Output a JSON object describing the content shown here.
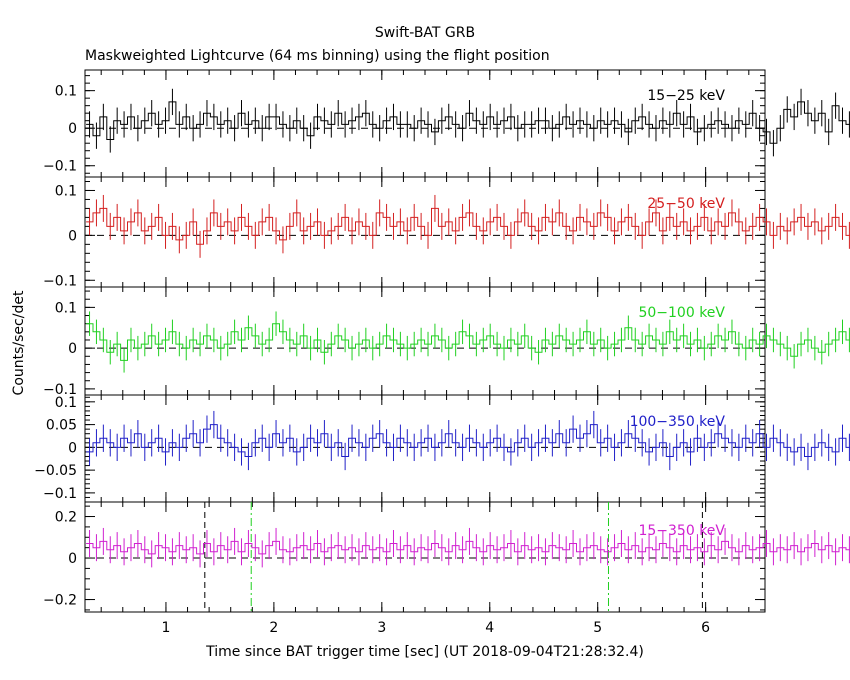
{
  "figure": {
    "title": "Swift-BAT GRB",
    "subtitle": "Maskweighted Lightcurve (64 ms binning) using the flight position",
    "xlabel": "Time since BAT trigger time [sec] (UT 2018-09-04T21:28:32.4)",
    "ylabel": "Counts/sec/det"
  },
  "chart_data": [
    {
      "type": "line",
      "step": true,
      "name": "15-25 keV",
      "label": "15−25 keV",
      "color": "#000000",
      "xlim": [
        0.25,
        6.55
      ],
      "ylim": [
        -0.13,
        0.155
      ],
      "yticks": [
        {
          "v": 0.1,
          "t": "0.1"
        },
        {
          "v": 0,
          "t": "0"
        },
        {
          "v": -0.1,
          "t": "−0.1"
        }
      ],
      "x0": 0.26,
      "dx": 0.064,
      "values": [
        0.01,
        -0.02,
        0.03,
        -0.03,
        0.02,
        0.01,
        0.03,
        0.0,
        0.02,
        0.04,
        0.01,
        0.02,
        0.07,
        0.01,
        0.03,
        0.0,
        0.01,
        0.04,
        0.03,
        0.01,
        0.02,
        0.0,
        0.04,
        0.01,
        0.02,
        0.0,
        0.03,
        0.03,
        0.01,
        0.0,
        0.02,
        0.0,
        -0.02,
        0.03,
        0.02,
        0.01,
        0.04,
        0.01,
        0.02,
        0.03,
        0.04,
        0.01,
        0.0,
        0.02,
        0.03,
        0.01,
        0.01,
        0.0,
        0.02,
        0.01,
        -0.01,
        0.02,
        0.03,
        0.01,
        0.0,
        0.04,
        0.02,
        0.01,
        0.03,
        0.01,
        0.02,
        0.03,
        0.0,
        0.01,
        0.01,
        0.02,
        0.02,
        0.0,
        0.01,
        0.03,
        0.01,
        0.02,
        0.01,
        0.0,
        0.02,
        0.01,
        0.02,
        0.01,
        -0.01,
        0.02,
        0.03,
        0.01,
        0.0,
        0.02,
        0.01,
        0.04,
        0.01,
        0.03,
        -0.01,
        0.0,
        0.01,
        0.02,
        0.01,
        0.0,
        0.02,
        0.01,
        0.04,
        0.0,
        -0.01,
        -0.04,
        0.0,
        0.05,
        0.03,
        0.07,
        0.04,
        0.02,
        0.04,
        -0.01,
        0.06,
        0.02,
        0.01,
        0.04,
        0.0,
        -0.02
      ],
      "errors": 0.035
    },
    {
      "type": "line",
      "step": true,
      "name": "25-50 keV",
      "label": "25−50 keV",
      "color": "#d42020",
      "xlim": [
        0.25,
        6.55
      ],
      "ylim": [
        -0.115,
        0.13
      ],
      "yticks": [
        {
          "v": 0.1,
          "t": "0.1"
        },
        {
          "v": 0,
          "t": "0"
        },
        {
          "v": -0.1,
          "t": "−0.1"
        }
      ],
      "x0": 0.26,
      "dx": 0.064,
      "values": [
        0.03,
        0.05,
        0.06,
        0.02,
        0.04,
        0.01,
        0.03,
        0.05,
        0.01,
        0.02,
        0.04,
        0.0,
        0.02,
        -0.01,
        0.0,
        0.03,
        -0.02,
        0.01,
        0.05,
        0.02,
        0.03,
        0.01,
        0.04,
        0.02,
        0.0,
        0.03,
        0.04,
        0.01,
        -0.01,
        0.02,
        0.05,
        0.01,
        0.02,
        0.03,
        0.0,
        0.01,
        0.02,
        0.04,
        0.01,
        0.03,
        0.02,
        0.0,
        0.05,
        0.04,
        0.02,
        0.03,
        0.01,
        0.04,
        0.02,
        0.0,
        0.06,
        0.02,
        0.03,
        0.01,
        0.04,
        0.05,
        0.02,
        0.01,
        0.03,
        0.04,
        0.02,
        0.0,
        0.03,
        0.05,
        0.02,
        0.01,
        0.04,
        0.03,
        0.05,
        0.02,
        0.01,
        0.04,
        0.03,
        0.02,
        0.05,
        0.04,
        0.01,
        0.03,
        0.04,
        0.02,
        0.0,
        0.03,
        0.05,
        0.01,
        0.04,
        0.02,
        0.03,
        0.01,
        0.02,
        0.04,
        0.01,
        0.03,
        0.02,
        0.05,
        0.03,
        0.01,
        0.02,
        0.04,
        0.03,
        0.0,
        0.02,
        0.01,
        0.03,
        0.04,
        0.02,
        0.03,
        0.01,
        0.02,
        0.04,
        0.02,
        0.0,
        0.03,
        0.04
      ],
      "errors": 0.03
    },
    {
      "type": "line",
      "step": true,
      "name": "50-100 keV",
      "label": "50−100 keV",
      "color": "#20d020",
      "xlim": [
        0.25,
        6.55
      ],
      "ylim": [
        -0.115,
        0.15
      ],
      "yticks": [
        {
          "v": 0.1,
          "t": "0.1"
        },
        {
          "v": 0,
          "t": "0"
        },
        {
          "v": -0.1,
          "t": "−0.1"
        }
      ],
      "x0": 0.26,
      "dx": 0.064,
      "values": [
        0.06,
        0.04,
        0.02,
        -0.01,
        0.01,
        -0.03,
        0.02,
        0.0,
        0.01,
        0.03,
        0.01,
        0.02,
        0.04,
        0.01,
        0.0,
        0.02,
        0.01,
        0.03,
        0.02,
        0.0,
        0.01,
        0.04,
        0.02,
        0.05,
        0.03,
        0.01,
        0.02,
        0.06,
        0.04,
        0.02,
        0.01,
        0.03,
        0.0,
        0.02,
        -0.01,
        0.01,
        0.03,
        0.02,
        0.0,
        0.01,
        0.02,
        0.0,
        0.01,
        0.03,
        0.02,
        0.01,
        0.0,
        0.01,
        0.02,
        0.01,
        0.03,
        0.02,
        0.0,
        0.01,
        0.04,
        0.03,
        0.01,
        0.02,
        0.03,
        0.01,
        0.0,
        0.02,
        0.01,
        0.03,
        0.0,
        -0.01,
        0.02,
        0.01,
        0.03,
        0.02,
        0.01,
        0.02,
        0.04,
        0.01,
        0.02,
        0.0,
        0.01,
        0.02,
        0.05,
        0.02,
        0.01,
        0.03,
        0.02,
        0.01,
        0.04,
        0.02,
        0.03,
        0.01,
        0.02,
        0.0,
        0.01,
        0.03,
        0.02,
        0.04,
        0.01,
        0.0,
        0.02,
        0.01,
        0.03,
        0.02,
        0.01,
        0.0,
        -0.02,
        0.01,
        0.02,
        0.0,
        -0.01,
        0.01,
        0.02,
        0.04,
        0.02,
        0.01,
        0.05
      ],
      "errors": 0.03
    },
    {
      "type": "line",
      "step": true,
      "name": "100-350 keV",
      "label": "100−350 keV",
      "color": "#2020c8",
      "xlim": [
        0.25,
        6.55
      ],
      "ylim": [
        -0.12,
        0.115
      ],
      "yticks": [
        {
          "v": 0.1,
          "t": "0.1"
        },
        {
          "v": 0.05,
          "t": "0.05"
        },
        {
          "v": 0,
          "t": "0"
        },
        {
          "v": -0.05,
          "t": "−0.05"
        },
        {
          "v": -0.1,
          "t": "−0.1"
        }
      ],
      "x0": 0.26,
      "dx": 0.064,
      "values": [
        -0.01,
        0.01,
        0.02,
        0.01,
        0.0,
        0.02,
        0.01,
        0.03,
        0.0,
        0.01,
        0.02,
        -0.01,
        0.01,
        0.0,
        0.02,
        0.03,
        0.01,
        0.04,
        0.05,
        0.02,
        0.01,
        0.0,
        -0.01,
        -0.02,
        0.01,
        0.02,
        0.0,
        0.03,
        0.01,
        0.02,
        -0.01,
        0.0,
        0.02,
        0.01,
        0.03,
        0.0,
        0.01,
        -0.02,
        0.02,
        0.01,
        0.0,
        0.02,
        0.03,
        0.01,
        0.0,
        0.02,
        0.01,
        0.0,
        0.01,
        0.02,
        0.0,
        0.01,
        0.03,
        0.01,
        0.0,
        0.02,
        0.01,
        0.0,
        0.01,
        0.02,
        0.0,
        -0.01,
        0.01,
        0.02,
        0.0,
        0.01,
        0.02,
        0.01,
        0.03,
        0.01,
        0.04,
        0.02,
        0.03,
        0.05,
        0.01,
        0.02,
        0.0,
        0.01,
        0.03,
        0.02,
        0.01,
        -0.01,
        0.0,
        0.01,
        -0.02,
        0.0,
        0.01,
        -0.01,
        0.02,
        0.0,
        0.01,
        0.03,
        0.02,
        0.01,
        0.0,
        0.02,
        0.01,
        0.03,
        0.0,
        0.02,
        0.01,
        0.0,
        -0.01,
        0.0,
        -0.02,
        0.0,
        0.01,
        0.0,
        -0.01,
        0.02,
        0.0,
        -0.01,
        -0.02
      ],
      "errors": 0.03
    },
    {
      "type": "line",
      "step": true,
      "name": "15-350 keV",
      "label": "15−350 keV",
      "color": "#d020d0",
      "xlim": [
        0.25,
        6.55
      ],
      "ylim": [
        -0.26,
        0.27
      ],
      "yticks": [
        {
          "v": 0.2,
          "t": "0.2"
        },
        {
          "v": 0,
          "t": "0"
        },
        {
          "v": -0.2,
          "t": "−0.2"
        }
      ],
      "x0": 0.26,
      "dx": 0.064,
      "values": [
        0.07,
        0.05,
        0.08,
        0.04,
        0.06,
        0.03,
        0.05,
        0.07,
        0.04,
        0.02,
        0.06,
        0.05,
        0.03,
        0.06,
        0.04,
        0.05,
        0.02,
        0.07,
        0.03,
        0.06,
        0.04,
        0.08,
        0.03,
        0.07,
        0.05,
        0.02,
        0.06,
        0.08,
        0.04,
        0.03,
        0.05,
        0.06,
        0.04,
        0.07,
        0.03,
        0.05,
        0.06,
        0.04,
        0.05,
        0.03,
        0.06,
        0.04,
        0.05,
        0.03,
        0.07,
        0.04,
        0.06,
        0.03,
        0.05,
        0.04,
        0.07,
        0.05,
        0.03,
        0.06,
        0.04,
        0.08,
        0.05,
        0.03,
        0.06,
        0.04,
        0.05,
        0.07,
        0.03,
        0.06,
        0.04,
        0.05,
        0.03,
        0.06,
        0.05,
        0.04,
        0.07,
        0.03,
        0.05,
        0.06,
        0.04,
        0.03,
        0.05,
        0.07,
        0.04,
        0.06,
        0.03,
        0.05,
        0.04,
        0.07,
        0.05,
        0.03,
        0.06,
        0.04,
        0.05,
        0.03,
        0.06,
        0.04,
        0.08,
        0.05,
        0.03,
        0.06,
        0.04,
        0.05,
        0.07,
        0.03,
        0.05,
        0.04,
        0.06,
        0.03,
        0.05,
        0.07,
        0.04,
        0.06,
        0.03,
        0.05,
        0.04,
        0.06,
        0.05
      ],
      "errors": 0.065,
      "vlines": [
        {
          "x": 1.36,
          "style": "dashed",
          "color": "#000000"
        },
        {
          "x": 1.79,
          "style": "dashdot",
          "color": "#20d020"
        },
        {
          "x": 5.1,
          "style": "dashdot",
          "color": "#20d020"
        },
        {
          "x": 5.97,
          "style": "dashed",
          "color": "#000000"
        }
      ]
    }
  ],
  "xticks": [
    {
      "v": 1,
      "t": "1"
    },
    {
      "v": 2,
      "t": "2"
    },
    {
      "v": 3,
      "t": "3"
    },
    {
      "v": 4,
      "t": "4"
    },
    {
      "v": 5,
      "t": "5"
    },
    {
      "v": 6,
      "t": "6"
    }
  ]
}
